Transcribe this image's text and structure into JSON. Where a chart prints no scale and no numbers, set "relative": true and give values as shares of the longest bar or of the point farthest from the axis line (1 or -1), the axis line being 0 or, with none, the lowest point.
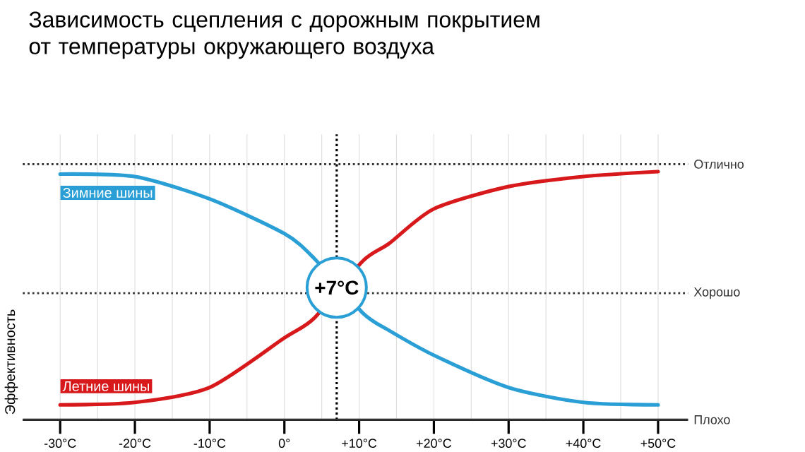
{
  "chart_data": {
    "type": "line",
    "title": "Зависимость сцепления с дорожным покрытием\nот температуры окружающего воздуха",
    "ylabel": "Эффективность",
    "relative": true,
    "x": [
      -30,
      -20,
      -10,
      0,
      4,
      7,
      10.5,
      14,
      20,
      30,
      40,
      50
    ],
    "series": [
      {
        "name": "Зимние шины",
        "color": "#2a9fd6",
        "values": [
          0.99,
          0.98,
          0.89,
          0.75,
          0.65,
          null,
          0.43,
          0.36,
          0.26,
          0.13,
          0.07,
          0.06
        ]
      },
      {
        "name": "Летние шины",
        "color": "#d7191c",
        "values": [
          0.06,
          0.07,
          0.13,
          0.33,
          0.41,
          null,
          0.64,
          0.71,
          0.85,
          0.94,
          0.98,
          1.0
        ]
      }
    ],
    "xlim": [
      -35,
      54
    ],
    "xticks": [
      {
        "value": -30,
        "label": "-30°C"
      },
      {
        "value": -20,
        "label": "-20°C"
      },
      {
        "value": -10,
        "label": "-10°C"
      },
      {
        "value": 0,
        "label": "0°"
      },
      {
        "value": 10,
        "label": "+10°C"
      },
      {
        "value": 20,
        "label": "+20°C"
      },
      {
        "value": 30,
        "label": "+30°C"
      },
      {
        "value": 40,
        "label": "+40°C"
      },
      {
        "value": 50,
        "label": "+50°C"
      }
    ],
    "ref_lines": [
      {
        "axis": "x",
        "value": 7,
        "label": "+7°C",
        "line_style": "dotted"
      },
      {
        "axis": "y",
        "value": 1.03,
        "label": "Отлично",
        "line_style": "dotted"
      },
      {
        "axis": "y",
        "value": 0.51,
        "label": "Хорошо",
        "line_style": "dotted"
      },
      {
        "axis": "y",
        "value": 0,
        "label": "Плохо",
        "line_style": "solid"
      }
    ],
    "grid": true,
    "marker": "none",
    "line_style": "solid"
  }
}
